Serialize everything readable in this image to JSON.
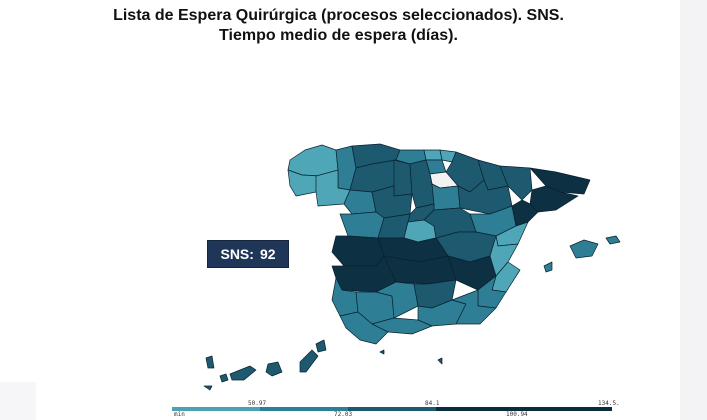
{
  "title": {
    "line1": "Lista de Espera  Quirúrgica (procesos seleccionados). SNS.",
    "line2": "Tiempo medio de espera (días)."
  },
  "badge": {
    "label": "SNS:",
    "value": "92"
  },
  "legend": {
    "top_ticks": [
      "50.97",
      "84.1",
      "134.5."
    ],
    "bottom_ticks": [
      "min",
      "72.03",
      "100.94"
    ],
    "colors": [
      "#4aa3b4",
      "#2d7f96",
      "#1c5a70",
      "#0b2c3e"
    ]
  },
  "colors": {
    "light": "#4ea6b7",
    "mid": "#2e7f95",
    "dark": "#1d5a70",
    "darkest": "#0d3043",
    "badge": "#1f3658"
  }
}
